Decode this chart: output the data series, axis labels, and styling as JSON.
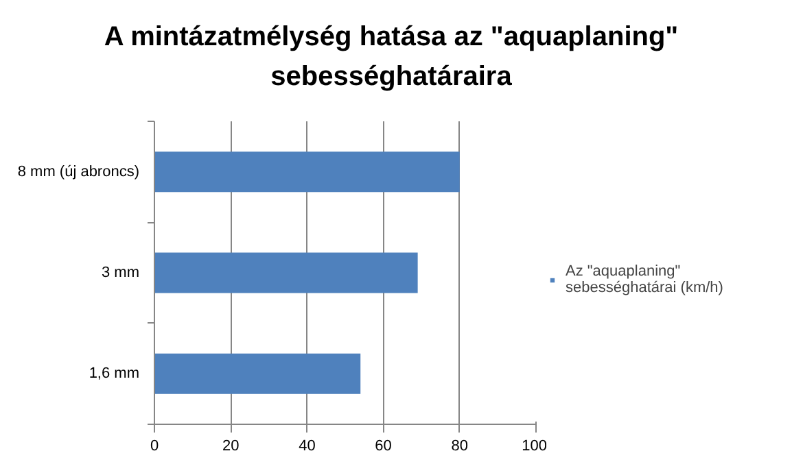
{
  "chart_data": {
    "type": "bar",
    "orientation": "horizontal",
    "title": "A mintázatmélység hatása az \"aquaplaning\" sebességhatáraira",
    "categories": [
      "8 mm (új abroncs)",
      "3 mm",
      "1,6 mm"
    ],
    "series": [
      {
        "name": "Az \"aquaplaning\" sebességhatárai (km/h)",
        "color": "#4f81bd",
        "values": [
          80,
          69,
          54
        ]
      }
    ],
    "xlim": [
      0,
      100
    ],
    "xticks": [
      0,
      20,
      40,
      60,
      80,
      100
    ],
    "grid": "x",
    "legend": "right"
  }
}
